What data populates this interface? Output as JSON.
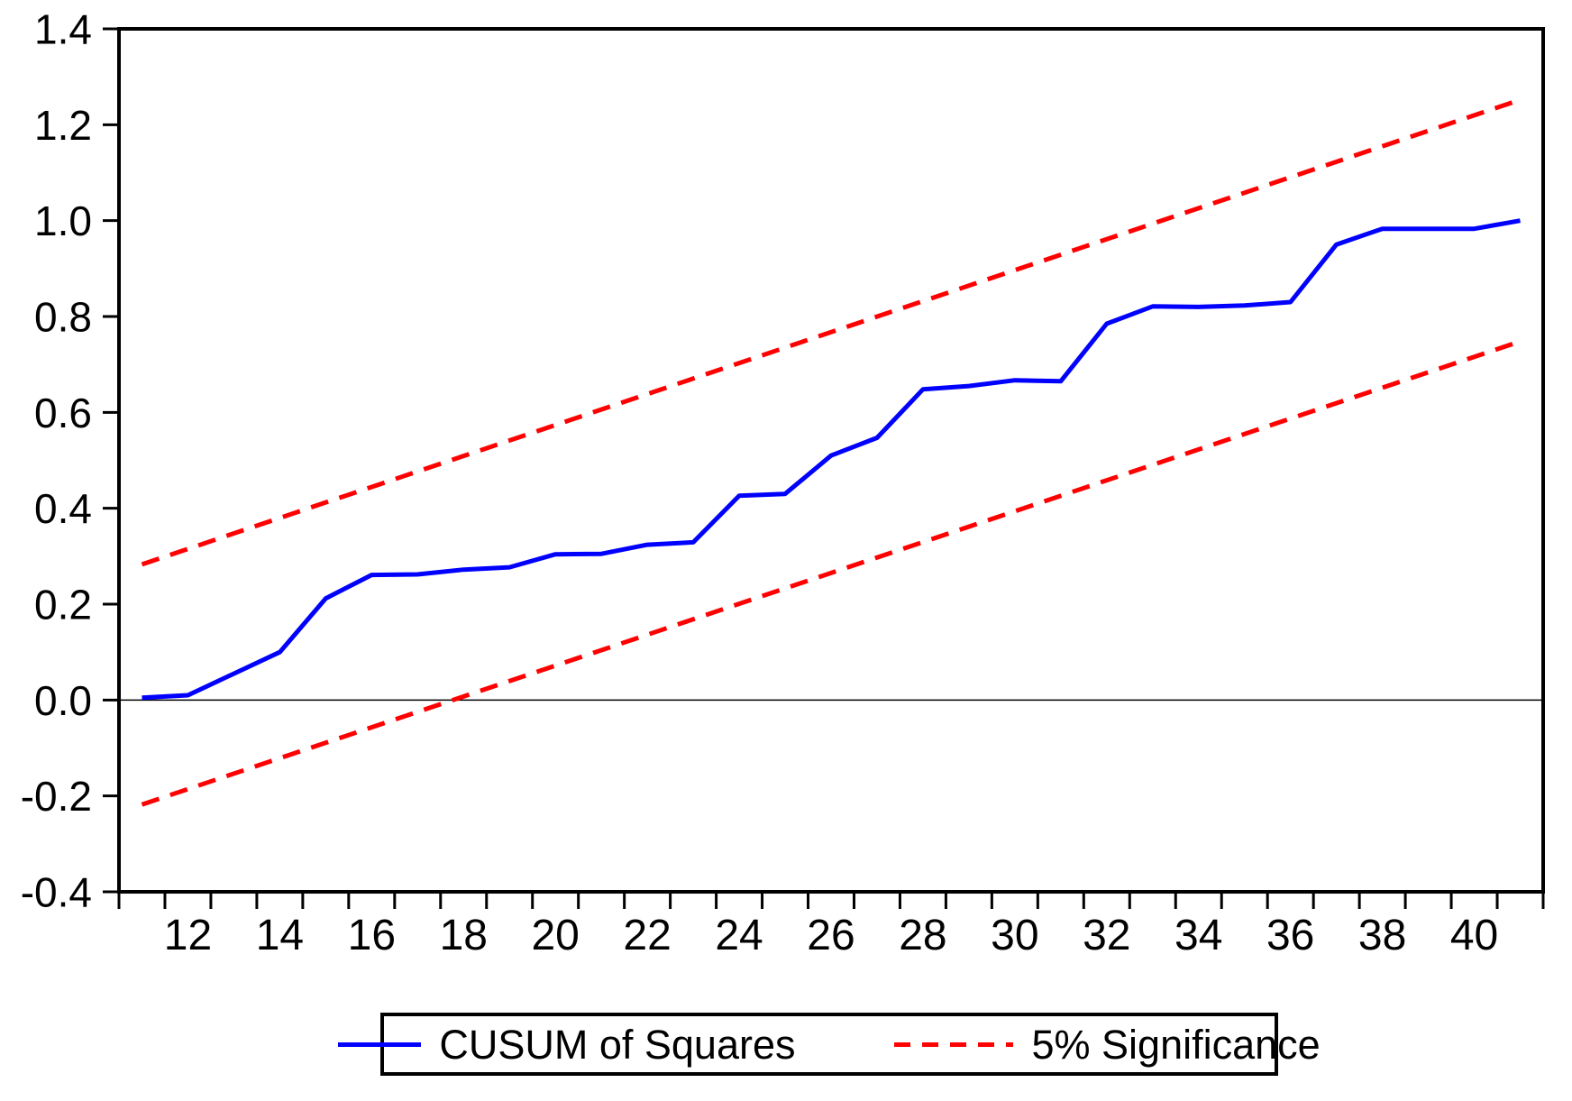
{
  "chart_data": {
    "type": "line",
    "title": "",
    "xlabel": "",
    "ylabel": "",
    "xlim": [
      10.5,
      41.5
    ],
    "ylim": [
      -0.4,
      1.4
    ],
    "grid": false,
    "zero_line": true,
    "xticks_labeled": [
      12,
      14,
      16,
      18,
      20,
      22,
      24,
      26,
      28,
      30,
      32,
      34,
      36,
      38,
      40
    ],
    "xtick_marks": {
      "start": 10.5,
      "end": 41.5,
      "step": 1
    },
    "yticks": [
      -0.4,
      -0.2,
      0.0,
      0.2,
      0.4,
      0.6,
      0.8,
      1.0,
      1.2,
      1.4
    ],
    "series": [
      {
        "name": "CUSUM of Squares",
        "color": "#0000ff",
        "style": "solid",
        "x": [
          11,
          12,
          13,
          14,
          15,
          16,
          17,
          18,
          19,
          20,
          21,
          22,
          23,
          24,
          25,
          26,
          27,
          28,
          29,
          30,
          31,
          32,
          33,
          34,
          35,
          36,
          37,
          38,
          39,
          40,
          41
        ],
        "values": [
          0.005,
          0.01,
          0.055,
          0.1,
          0.212,
          0.261,
          0.262,
          0.272,
          0.277,
          0.304,
          0.305,
          0.324,
          0.329,
          0.426,
          0.43,
          0.51,
          0.547,
          0.648,
          0.655,
          0.667,
          0.665,
          0.785,
          0.821,
          0.82,
          0.823,
          0.83,
          0.95,
          0.983,
          0.983,
          0.983,
          1.0
        ]
      },
      {
        "name": "5% Significance (upper)",
        "color": "#ff0000",
        "style": "dashed",
        "x": [
          11,
          41
        ],
        "values": [
          0.283,
          1.252
        ]
      },
      {
        "name": "5% Significance (lower)",
        "color": "#ff0000",
        "style": "dashed",
        "x": [
          11,
          41
        ],
        "values": [
          -0.218,
          0.748
        ]
      }
    ],
    "legend": {
      "position": "bottom",
      "entries": [
        {
          "label": "CUSUM of Squares",
          "color": "#0000ff",
          "style": "solid"
        },
        {
          "label": "5% Significance",
          "color": "#ff0000",
          "style": "dashed"
        }
      ]
    },
    "colors": {
      "cusum_line": "#0000ff",
      "significance_line": "#ff0000",
      "axis": "#000000",
      "background": "#ffffff"
    }
  }
}
